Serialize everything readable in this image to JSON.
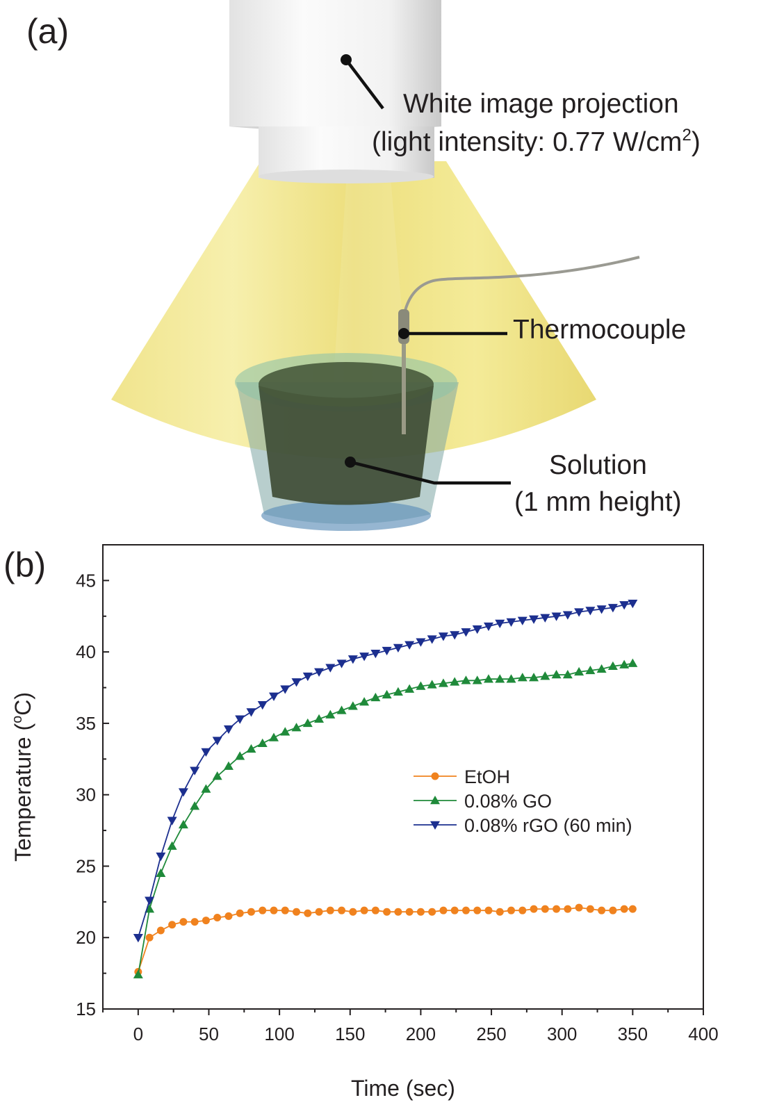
{
  "panel_a": {
    "label": "(a)",
    "projector_label_line1": "White image projection",
    "projector_label_line2_pre": "(light intensity: 0.77 W/cm",
    "projector_label_line2_sup": "2",
    "projector_label_line2_post": ")",
    "thermocouple_label": "Thermocouple",
    "solution_label_line1": "Solution",
    "solution_label_line2": "(1 mm height)",
    "colors": {
      "light_cone": "#efe58a",
      "projector": "#e8e8e8",
      "beaker": "#7fb3a0",
      "solution": "#3d4a34"
    }
  },
  "panel_b": {
    "label": "(b)"
  },
  "chart_data": {
    "type": "line",
    "xlabel": "Time (sec)",
    "ylabel_pre": "Temperature (",
    "ylabel_sup": "o",
    "ylabel_post": "C)",
    "xlim": [
      -25,
      400
    ],
    "ylim": [
      15,
      47.5
    ],
    "xticks": [
      0,
      50,
      100,
      150,
      200,
      250,
      300,
      350,
      400
    ],
    "yticks": [
      15,
      20,
      25,
      30,
      35,
      40,
      45
    ],
    "legend_position": "center-right",
    "x": [
      0,
      8,
      16,
      24,
      32,
      40,
      48,
      56,
      64,
      72,
      80,
      88,
      96,
      104,
      112,
      120,
      128,
      136,
      144,
      152,
      160,
      168,
      176,
      184,
      192,
      200,
      208,
      216,
      224,
      232,
      240,
      248,
      256,
      264,
      272,
      280,
      288,
      296,
      304,
      312,
      320,
      328,
      336,
      344,
      350
    ],
    "series": [
      {
        "name": "EtOH",
        "color": "#f0821e",
        "marker": "circle",
        "values": [
          17.6,
          20.0,
          20.5,
          20.9,
          21.1,
          21.1,
          21.2,
          21.4,
          21.5,
          21.7,
          21.8,
          21.9,
          21.9,
          21.9,
          21.8,
          21.7,
          21.8,
          21.9,
          21.9,
          21.8,
          21.9,
          21.9,
          21.8,
          21.8,
          21.8,
          21.8,
          21.8,
          21.9,
          21.9,
          21.9,
          21.9,
          21.9,
          21.8,
          21.9,
          21.9,
          22.0,
          22.0,
          22.0,
          22.0,
          22.1,
          22.0,
          21.9,
          21.9,
          22.0,
          22.0
        ]
      },
      {
        "name": "0.08% GO",
        "color": "#1f8a3a",
        "marker": "triangle-up",
        "values": [
          17.4,
          22.0,
          24.5,
          26.4,
          27.9,
          29.2,
          30.4,
          31.3,
          32.0,
          32.7,
          33.2,
          33.6,
          34.0,
          34.4,
          34.7,
          35.0,
          35.3,
          35.6,
          35.9,
          36.2,
          36.5,
          36.8,
          37.0,
          37.2,
          37.4,
          37.6,
          37.7,
          37.8,
          37.9,
          38.0,
          38.0,
          38.1,
          38.1,
          38.1,
          38.2,
          38.2,
          38.3,
          38.4,
          38.4,
          38.6,
          38.7,
          38.8,
          39.0,
          39.1,
          39.2
        ]
      },
      {
        "name": "0.08% rGO (60 min)",
        "color": "#1c2f8f",
        "marker": "triangle-down",
        "values": [
          20.0,
          22.6,
          25.7,
          28.2,
          30.2,
          31.7,
          33.0,
          33.8,
          34.6,
          35.3,
          35.8,
          36.3,
          36.9,
          37.4,
          37.9,
          38.3,
          38.6,
          38.9,
          39.2,
          39.5,
          39.7,
          39.9,
          40.1,
          40.3,
          40.5,
          40.7,
          40.9,
          41.1,
          41.2,
          41.4,
          41.6,
          41.8,
          42.0,
          42.1,
          42.2,
          42.3,
          42.4,
          42.5,
          42.6,
          42.8,
          42.9,
          43.0,
          43.1,
          43.3,
          43.4
        ]
      }
    ]
  }
}
